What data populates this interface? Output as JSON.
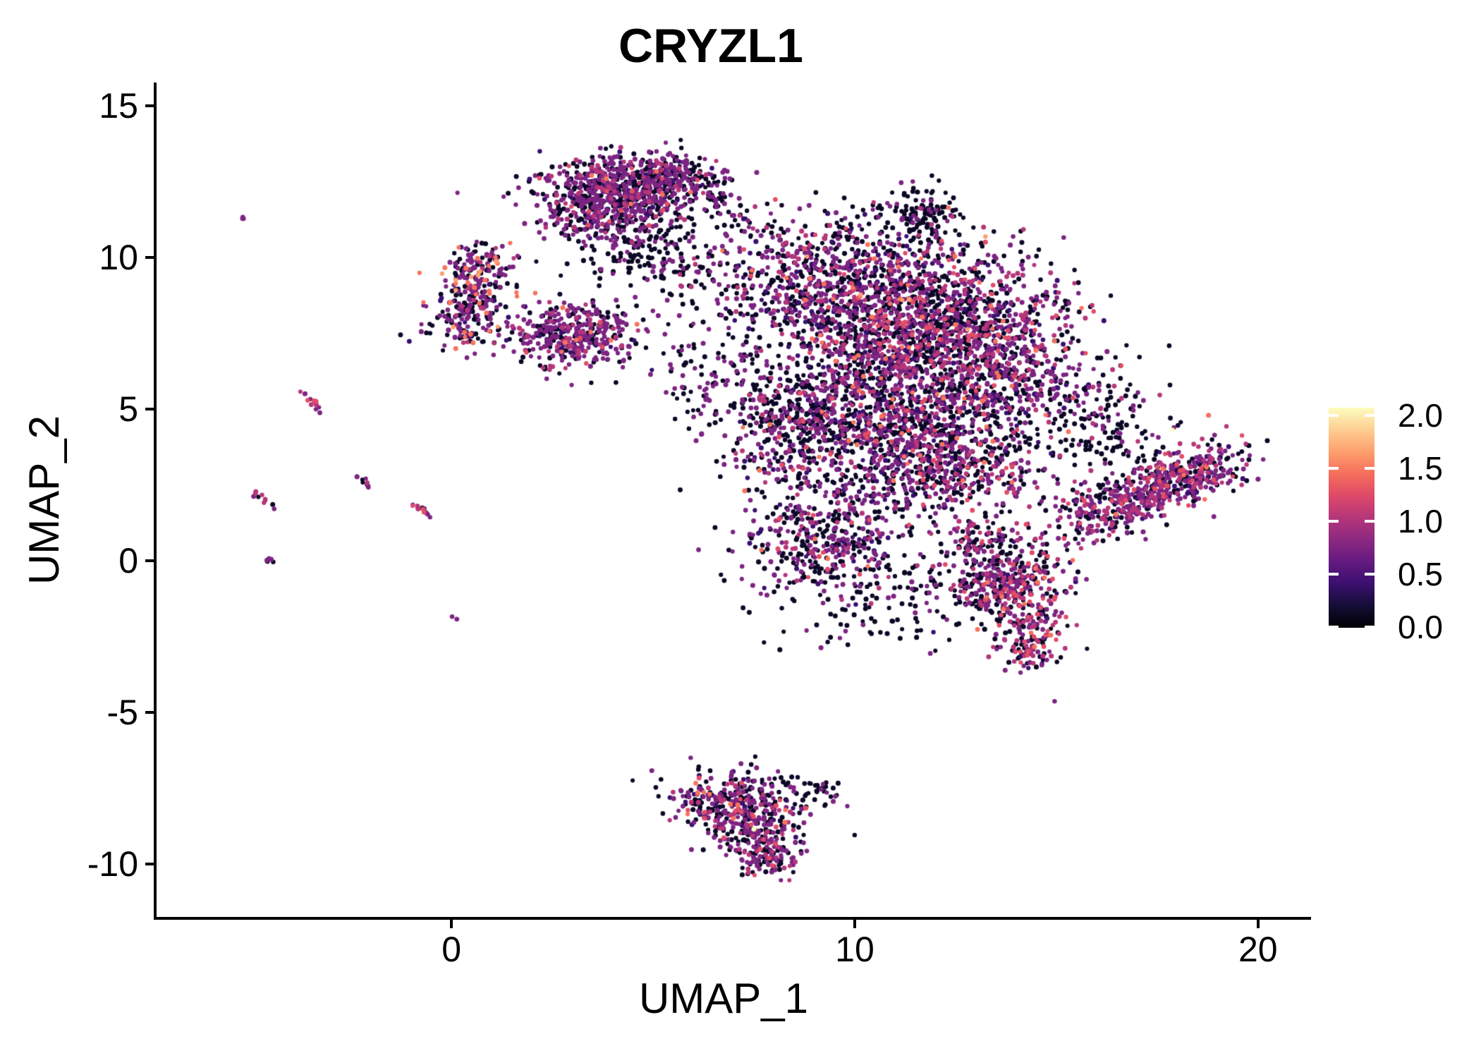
{
  "title": "CRYZL1",
  "colors": {
    "background": "#FFFFFF",
    "axis": "#000000",
    "text": "#000000"
  },
  "chart_data": {
    "type": "scatter",
    "title": "CRYZL1",
    "xlabel": "UMAP_1",
    "ylabel": "UMAP_2",
    "xlim": [
      -7.33,
      21.28
    ],
    "ylim": [
      -11.77,
      15.77
    ],
    "grid": false,
    "x_ticks": {
      "values": [
        0,
        10,
        20
      ],
      "labels": [
        "0",
        "10",
        "20"
      ]
    },
    "y_ticks": {
      "values": [
        15,
        10,
        5,
        0,
        -5,
        -10
      ],
      "labels": [
        "15",
        "10",
        "5",
        "0",
        "-5",
        "-10"
      ]
    },
    "point_radius": 3.3,
    "legend": {
      "type": "colorbar",
      "position": "right",
      "colormap": "magma",
      "domain": [
        0,
        2
      ],
      "tick_values": [
        2.0,
        1.5,
        1.0,
        0.5,
        0.0
      ],
      "tick_labels": [
        "2.0",
        "1.5",
        "1.0",
        "0.5",
        "0.0"
      ],
      "gradient_stops": [
        "#000004 0%",
        "#140E36 10%",
        "#3B0F70 20%",
        "#641A80 30%",
        "#8C2981 40%",
        "#B5367A 50%",
        "#DE4968 60%",
        "#F66E5C 70%",
        "#FE9F6D 80%",
        "#FECE91 90%",
        "#FCFDBF 100%"
      ]
    },
    "palette": {
      "K": "#0D0726",
      "DP": "#3B0F70",
      "P": "#7D2482",
      "M": "#B63679",
      "PK": "#E14D67",
      "S": "#F7735C",
      "O": "#FE9F6D",
      "C": "#FBFCBB"
    },
    "color_rank": [
      "K",
      "DP",
      "P",
      "M",
      "PK",
      "S",
      "O",
      "C"
    ],
    "clusters": [
      {
        "name": "top-core",
        "shape": "gauss",
        "cx": 4.35,
        "cy": 12.3,
        "sx": 1.0,
        "sy": 0.55,
        "n": 680,
        "mix": {
          "K": 36,
          "DP": 6,
          "P": 46,
          "M": 8,
          "PK": 3,
          "S": 1
        }
      },
      {
        "name": "top-left-low",
        "shape": "gauss",
        "cx": 3.35,
        "cy": 11.35,
        "sx": 0.55,
        "sy": 0.45,
        "n": 140,
        "mix": {
          "K": 40,
          "DP": 5,
          "P": 45,
          "M": 8,
          "PK": 2
        }
      },
      {
        "name": "top-right-edge",
        "shape": "gauss",
        "cx": 5.55,
        "cy": 12.75,
        "sx": 0.5,
        "sy": 0.35,
        "n": 90,
        "mix": {
          "K": 58,
          "P": 37,
          "M": 5
        }
      },
      {
        "name": "top-under-scatter",
        "shape": "gauss",
        "cx": 4.5,
        "cy": 10.75,
        "sx": 0.85,
        "sy": 0.55,
        "n": 110,
        "mix": {
          "K": 68,
          "P": 30,
          "M": 2
        }
      },
      {
        "name": "bridge-topright",
        "shape": "band",
        "x1": 5.95,
        "y1": 13.0,
        "x2": 7.35,
        "y2": 10.9,
        "sd": 0.28,
        "n": 55,
        "mix": {
          "K": 75,
          "P": 25
        }
      },
      {
        "name": "main-top-notch",
        "shape": "gauss",
        "cx": 11.6,
        "cy": 11.3,
        "sx": 0.6,
        "sy": 0.55,
        "n": 130,
        "mix": {
          "K": 72,
          "P": 26,
          "M": 2
        }
      },
      {
        "name": "left-blob-top",
        "shape": "gauss",
        "cx": 0.75,
        "cy": 9.55,
        "sx": 0.48,
        "sy": 0.42,
        "n": 150,
        "mix": {
          "K": 40,
          "DP": 4,
          "P": 36,
          "M": 6,
          "S": 8,
          "O": 6
        }
      },
      {
        "name": "left-blob-mid",
        "shape": "gauss",
        "cx": 0.5,
        "cy": 8.6,
        "sx": 0.35,
        "sy": 0.3,
        "n": 55,
        "mix": {
          "K": 50,
          "P": 40,
          "M": 10
        }
      },
      {
        "name": "left-blob-low",
        "shape": "gauss",
        "cx": 0.2,
        "cy": 7.8,
        "sx": 0.5,
        "sy": 0.45,
        "n": 120,
        "mix": {
          "K": 45,
          "DP": 5,
          "P": 40,
          "M": 4,
          "S": 4,
          "O": 2
        }
      },
      {
        "name": "mid-cluster",
        "shape": "gauss",
        "cx": 3.1,
        "cy": 7.5,
        "sx": 0.8,
        "sy": 0.55,
        "n": 400,
        "mix": {
          "K": 30,
          "DP": 6,
          "P": 50,
          "M": 10,
          "PK": 2,
          "S": 2
        }
      },
      {
        "name": "scatter-top-mid",
        "shape": "gauss",
        "cx": 4.9,
        "cy": 9.9,
        "sx": 0.85,
        "sy": 0.65,
        "n": 85,
        "mix": {
          "K": 68,
          "P": 32
        }
      },
      {
        "name": "main-left-edge",
        "shape": "gauss",
        "cx": 6.4,
        "cy": 6.2,
        "sx": 0.8,
        "sy": 1.3,
        "n": 110,
        "mix": {
          "K": 65,
          "P": 35
        }
      },
      {
        "name": "main-topleft",
        "shape": "gauss",
        "cx": 9.0,
        "cy": 9.3,
        "sx": 1.5,
        "sy": 1.1,
        "n": 680,
        "mix": {
          "K": 45,
          "DP": 8,
          "P": 32,
          "M": 10,
          "PK": 3,
          "S": 2
        }
      },
      {
        "name": "main-topmid",
        "shape": "gauss",
        "cx": 11.9,
        "cy": 8.4,
        "sx": 1.5,
        "sy": 1.1,
        "n": 850,
        "mix": {
          "K": 42,
          "DP": 8,
          "P": 30,
          "M": 13,
          "PK": 4,
          "S": 2,
          "O": 1
        }
      },
      {
        "name": "main-center",
        "shape": "gauss",
        "cx": 10.7,
        "cy": 7.2,
        "sx": 1.0,
        "sy": 0.9,
        "n": 400,
        "mix": {
          "K": 45,
          "DP": 10,
          "P": 28,
          "M": 12,
          "PK": 3,
          "S": 2
        }
      },
      {
        "name": "main-right",
        "shape": "gauss",
        "cx": 13.7,
        "cy": 6.3,
        "sx": 1.15,
        "sy": 1.25,
        "n": 650,
        "mix": {
          "K": 44,
          "DP": 8,
          "P": 31,
          "M": 11,
          "PK": 4,
          "S": 2
        }
      },
      {
        "name": "main-centerlow",
        "shape": "gauss",
        "cx": 10.7,
        "cy": 4.8,
        "sx": 1.4,
        "sy": 1.1,
        "n": 800,
        "mix": {
          "K": 48,
          "DP": 9,
          "P": 27,
          "M": 10,
          "PK": 4,
          "S": 2
        }
      },
      {
        "name": "main-leftarm",
        "shape": "gauss",
        "cx": 8.5,
        "cy": 4.5,
        "sx": 0.85,
        "sy": 1.0,
        "n": 330,
        "mix": {
          "K": 52,
          "DP": 6,
          "P": 30,
          "M": 8,
          "PK": 3,
          "S": 1
        }
      },
      {
        "name": "main-low",
        "shape": "gauss",
        "cx": 12.3,
        "cy": 3.0,
        "sx": 1.3,
        "sy": 0.85,
        "n": 520,
        "mix": {
          "K": 45,
          "DP": 6,
          "P": 33,
          "M": 10,
          "PK": 4,
          "S": 2
        }
      },
      {
        "name": "main-lower-lobe",
        "shape": "gauss",
        "cx": 9.3,
        "cy": 0.6,
        "sx": 1.0,
        "sy": 1.0,
        "n": 430,
        "mix": {
          "K": 46,
          "DP": 8,
          "P": 32,
          "M": 9,
          "PK": 4,
          "S": 1
        }
      },
      {
        "name": "right-sparse",
        "shape": "gauss",
        "cx": 16.3,
        "cy": 4.6,
        "sx": 0.75,
        "sy": 0.9,
        "n": 130,
        "mix": {
          "K": 75,
          "P": 20,
          "M": 5
        }
      },
      {
        "name": "right-band",
        "shape": "band",
        "x1": 14.95,
        "y1": 1.05,
        "x2": 19.05,
        "y2": 3.2,
        "sd": 0.45,
        "n": 640,
        "bias": 0.7,
        "mix": {
          "K": 33,
          "DP": 5,
          "P": 38,
          "M": 16,
          "PK": 6,
          "S": 2
        }
      },
      {
        "name": "low-connector",
        "shape": "band",
        "x1": 10.6,
        "y1": -0.6,
        "x2": 13.0,
        "y2": -1.0,
        "sd": 0.35,
        "n": 65,
        "mix": {
          "K": 78,
          "P": 22
        }
      },
      {
        "name": "appendage",
        "shape": "gauss",
        "cx": 13.85,
        "cy": -0.85,
        "sx": 0.7,
        "sy": 0.75,
        "n": 380,
        "mix": {
          "K": 38,
          "DP": 5,
          "P": 30,
          "M": 17,
          "PK": 7,
          "S": 3
        }
      },
      {
        "name": "appendage-tip",
        "shape": "gauss",
        "cx": 14.4,
        "cy": -2.7,
        "sx": 0.4,
        "sy": 0.55,
        "n": 130,
        "mix": {
          "K": 35,
          "DP": 5,
          "P": 30,
          "M": 18,
          "PK": 9,
          "S": 3
        }
      },
      {
        "name": "appendage-neck",
        "shape": "gauss",
        "cx": 13.1,
        "cy": 0.5,
        "sx": 0.5,
        "sy": 0.5,
        "n": 100,
        "mix": {
          "K": 50,
          "P": 30,
          "M": 15,
          "PK": 5
        }
      },
      {
        "name": "below-scatter",
        "shape": "gauss",
        "cx": 10.0,
        "cy": -2.0,
        "sx": 1.3,
        "sy": 0.7,
        "n": 60,
        "mix": {
          "K": 80,
          "P": 20
        }
      },
      {
        "name": "bottom-top",
        "shape": "gauss",
        "cx": 6.85,
        "cy": -7.85,
        "sx": 0.8,
        "sy": 0.45,
        "n": 260,
        "mix": {
          "K": 40,
          "DP": 5,
          "P": 38,
          "M": 11,
          "PK": 4,
          "S": 2
        }
      },
      {
        "name": "bottom-mid",
        "shape": "gauss",
        "cx": 7.5,
        "cy": -8.9,
        "sx": 0.6,
        "sy": 0.55,
        "n": 210,
        "mix": {
          "K": 38,
          "DP": 5,
          "P": 40,
          "M": 11,
          "PK": 4,
          "S": 2
        }
      },
      {
        "name": "bottom-tip",
        "shape": "gauss",
        "cx": 7.9,
        "cy": -9.8,
        "sx": 0.33,
        "sy": 0.33,
        "n": 85,
        "mix": {
          "K": 40,
          "P": 45,
          "M": 10,
          "PK": 5
        }
      },
      {
        "name": "bottom-tail",
        "shape": "band",
        "x1": 8.35,
        "y1": -7.2,
        "x2": 9.4,
        "y2": -7.65,
        "sd": 0.16,
        "n": 35,
        "mix": {
          "K": 80,
          "P": 20
        }
      },
      {
        "name": "streak-1",
        "shape": "band",
        "x1": -5.28,
        "y1": 11.42,
        "x2": -5.1,
        "y2": 11.22,
        "sd": 0.04,
        "n": 4,
        "mix": {
          "P": 60,
          "K": 40
        }
      },
      {
        "name": "streak-2",
        "shape": "band",
        "x1": -3.7,
        "y1": 5.6,
        "x2": -3.25,
        "y2": 4.97,
        "sd": 0.05,
        "n": 13,
        "mix": {
          "P": 40,
          "K": 10,
          "M": 20,
          "PK": 15,
          "S": 15
        }
      },
      {
        "name": "streak-3",
        "shape": "band",
        "x1": -2.35,
        "y1": 2.85,
        "x2": -2.0,
        "y2": 2.42,
        "sd": 0.05,
        "n": 9,
        "mix": {
          "P": 50,
          "K": 35,
          "M": 15
        }
      },
      {
        "name": "streak-4",
        "shape": "band",
        "x1": -4.9,
        "y1": 2.25,
        "x2": -4.5,
        "y2": 1.8,
        "sd": 0.05,
        "n": 11,
        "mix": {
          "M": 45,
          "P": 35,
          "K": 20
        }
      },
      {
        "name": "streak-5",
        "shape": "band",
        "x1": -1.05,
        "y1": 2.0,
        "x2": -0.45,
        "y2": 1.45,
        "sd": 0.05,
        "n": 11,
        "mix": {
          "P": 40,
          "K": 15,
          "M": 20,
          "PK": 15,
          "S": 10
        }
      },
      {
        "name": "streak-6",
        "shape": "band",
        "x1": -4.62,
        "y1": 0.17,
        "x2": -4.42,
        "y2": -0.05,
        "sd": 0.04,
        "n": 5,
        "mix": {
          "P": 50,
          "K": 50
        }
      },
      {
        "name": "dot-pair",
        "shape": "band",
        "x1": 0.05,
        "y1": -1.82,
        "x2": 0.12,
        "y2": -1.9,
        "sd": 0.03,
        "n": 2,
        "mix": {
          "P": 100
        }
      }
    ],
    "extra_points": [
      {
        "x": 7.5,
        "y": -8.85,
        "c": "C"
      },
      {
        "x": 17.88,
        "y": 4.32,
        "c": "C"
      }
    ]
  }
}
